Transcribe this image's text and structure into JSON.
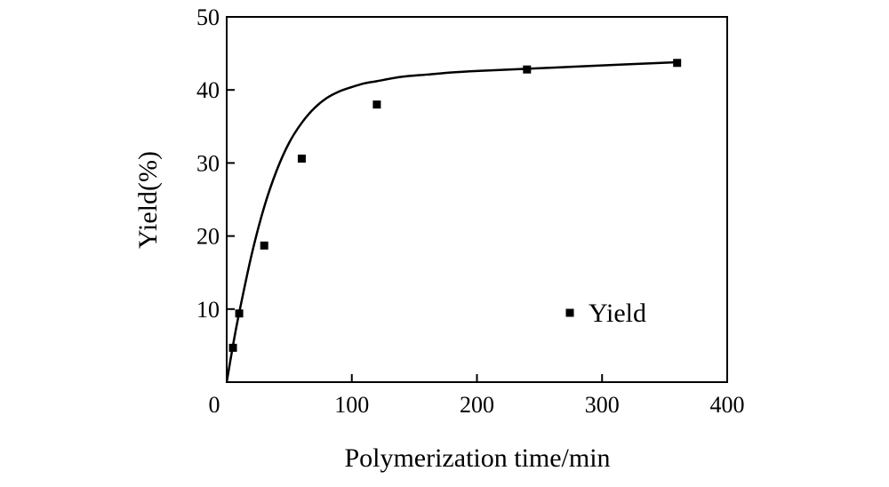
{
  "chart_data": {
    "type": "scatter",
    "title": "",
    "xlabel": "Polymerization time/min",
    "ylabel": "Yield(%)",
    "xlim": [
      0,
      400
    ],
    "ylim": [
      0,
      50
    ],
    "xticks": [
      0,
      100,
      200,
      300,
      400
    ],
    "xtick_labels": [
      "0",
      "100",
      "200",
      "300",
      "400"
    ],
    "yticks": [
      10,
      20,
      30,
      40,
      50
    ],
    "ytick_labels": [
      "10",
      "20",
      "30",
      "40",
      "50"
    ],
    "grid": false,
    "legend": {
      "position": "bottom-right",
      "entries": [
        "Yield"
      ]
    },
    "series": [
      {
        "name": "Yield",
        "marker": "square",
        "color": "#000000",
        "x": [
          5,
          10,
          30,
          60,
          120,
          240,
          360
        ],
        "y": [
          4.7,
          9.4,
          18.7,
          30.6,
          38.0,
          42.8,
          43.7
        ]
      }
    ],
    "fit_curve": {
      "color": "#000000",
      "x": [
        0,
        5,
        10,
        20,
        30,
        40,
        50,
        60,
        70,
        80,
        90,
        100,
        110,
        120,
        140,
        160,
        180,
        200,
        240,
        280,
        320,
        360
      ],
      "y": [
        0,
        5.0,
        9.5,
        17.5,
        24.0,
        29.0,
        32.8,
        35.5,
        37.5,
        38.9,
        39.8,
        40.4,
        40.9,
        41.2,
        41.8,
        42.1,
        42.4,
        42.6,
        42.9,
        43.2,
        43.5,
        43.8
      ]
    }
  }
}
